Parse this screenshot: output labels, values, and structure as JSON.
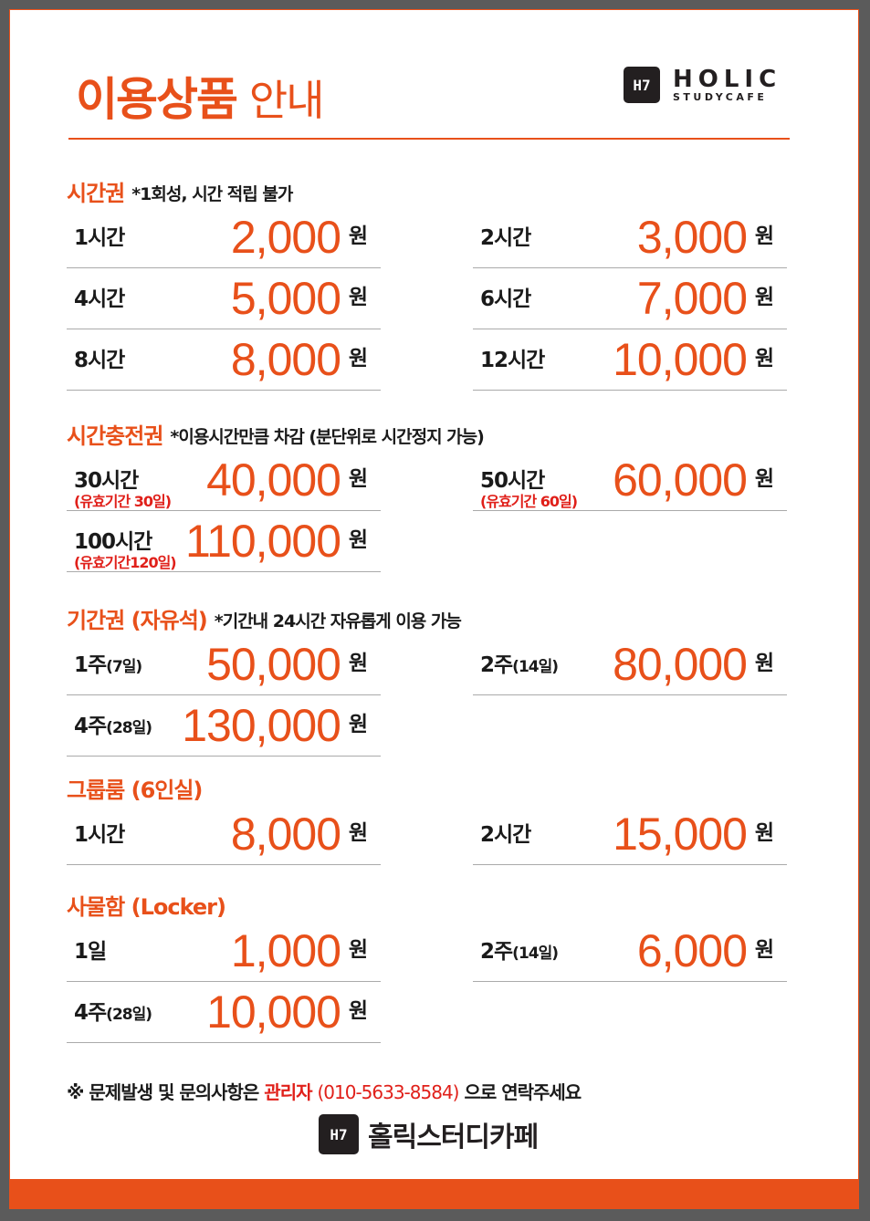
{
  "header": {
    "title_bold": "이용상품",
    "title_light": "안내"
  },
  "logo": {
    "mark": "H7",
    "line1": "HOLIC",
    "line2": "STUDYCAFE"
  },
  "colors": {
    "accent": "#e8501a",
    "red": "#e0201a",
    "frame": "#5b5b5b"
  },
  "sections": [
    {
      "title": "시간권",
      "note": "*1회성, 시간 적립 불가",
      "rows": [
        {
          "label": "1시간",
          "price": "2,000",
          "unit": "원"
        },
        {
          "label": "2시간",
          "price": "3,000",
          "unit": "원"
        },
        {
          "label": "4시간",
          "price": "5,000",
          "unit": "원"
        },
        {
          "label": "6시간",
          "price": "7,000",
          "unit": "원"
        },
        {
          "label": "8시간",
          "price": "8,000",
          "unit": "원"
        },
        {
          "label": "12시간",
          "price": "10,000",
          "unit": "원"
        }
      ]
    },
    {
      "title": "시간충전권",
      "note": "*이용시간만큼 차감 (분단위로 시간정지 가능)",
      "rows": [
        {
          "label": "30시간",
          "sub": "(유효기간 30일)",
          "price": "40,000",
          "unit": "원"
        },
        {
          "label": "50시간",
          "sub": "(유효기간 60일)",
          "price": "60,000",
          "unit": "원"
        },
        {
          "label": "100시간",
          "sub": "(유효기간120일)",
          "price": "110,000",
          "unit": "원"
        },
        null
      ]
    },
    {
      "title": "기간권 (자유석)",
      "note": "*기간내 24시간 자유롭게 이용 가능",
      "rows": [
        {
          "label": "1주",
          "small": "(7일)",
          "price": "50,000",
          "unit": "원"
        },
        {
          "label": "2주",
          "small": "(14일)",
          "price": "80,000",
          "unit": "원"
        },
        {
          "label": "4주",
          "small": "(28일)",
          "price": "130,000",
          "unit": "원"
        },
        null
      ]
    },
    {
      "title": "그룹룸  (6인실)",
      "note": "",
      "rows": [
        {
          "label": "1시간",
          "price": "8,000",
          "unit": "원"
        },
        {
          "label": "2시간",
          "price": "15,000",
          "unit": "원"
        }
      ]
    },
    {
      "title": "사물함 (Locker)",
      "note": "",
      "rows": [
        {
          "label": "1일",
          "price": "1,000",
          "unit": "원"
        },
        {
          "label": "2주",
          "small": "(14일)",
          "price": "6,000",
          "unit": "원"
        },
        {
          "label": "4주",
          "small": "(28일)",
          "price": "10,000",
          "unit": "원"
        },
        null
      ]
    }
  ],
  "footer": {
    "prefix": "※ 문제발생 및 문의사항은 ",
    "contact": "관리자",
    "phone": "(010-5633-8584)",
    "suffix": " 으로 연락주세요",
    "brand": "홀릭스터디카페",
    "brand_mark": "H7"
  }
}
